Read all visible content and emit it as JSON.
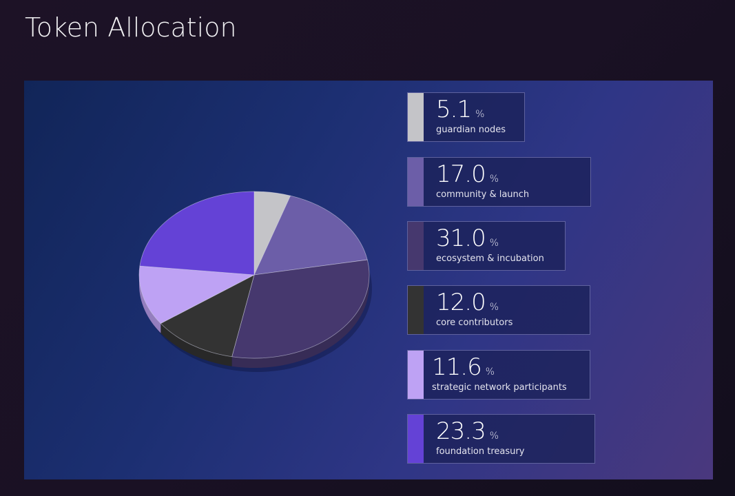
{
  "page": {
    "title": "Token Allocation"
  },
  "colors": {
    "guardian_nodes": "#c4c4c8",
    "community_launch": "#6c5ea8",
    "ecosystem_incubation": "#46386e",
    "core_contributors": "#333333",
    "strategic_network": "#bea2f4",
    "foundation_treasury": "#6442d6"
  },
  "legend": [
    {
      "value": "5.1",
      "unit": "%",
      "label": "guardian nodes",
      "color": "#c4c4c8"
    },
    {
      "value": "17.0",
      "unit": "%",
      "label": "community & launch",
      "color": "#6c5ea8"
    },
    {
      "value": "31.0",
      "unit": "%",
      "label": "ecosystem & incubation",
      "color": "#46386e"
    },
    {
      "value": "12.0",
      "unit": "%",
      "label": "core contributors",
      "color": "#333333"
    },
    {
      "value": "11.6",
      "unit": "%",
      "label": "strategic network participants",
      "color": "#bea2f4"
    },
    {
      "value": "23.3",
      "unit": "%",
      "label": "foundation treasury",
      "color": "#6442d6"
    }
  ],
  "chart_data": {
    "type": "pie",
    "title": "Token Allocation",
    "categories": [
      "guardian nodes",
      "community & launch",
      "ecosystem & incubation",
      "core contributors",
      "strategic network participants",
      "foundation treasury"
    ],
    "values": [
      5.1,
      17.0,
      31.0,
      12.0,
      11.6,
      23.3
    ],
    "unit": "%",
    "colors": [
      "#c4c4c8",
      "#6c5ea8",
      "#46386e",
      "#333333",
      "#bea2f4",
      "#6442d6"
    ],
    "start_angle": "12 o'clock",
    "direction": "clockwise",
    "style": "3d tilted",
    "legend_position": "right"
  }
}
